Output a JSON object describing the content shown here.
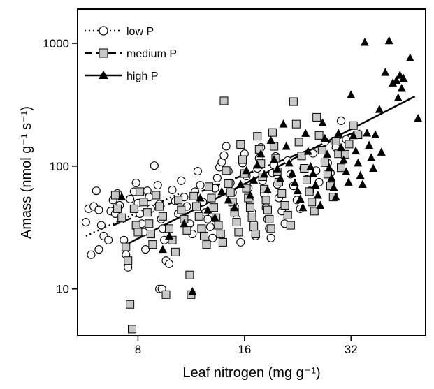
{
  "chart_data": {
    "type": "scatter",
    "title": "",
    "xlabel": "Leaf nitrogen (mg g⁻¹)",
    "ylabel": "Amass (nmol g⁻¹ s⁻¹)",
    "x_scale": "log2",
    "y_scale": "log10",
    "xlim": [
      5.4,
      52
    ],
    "ylim": [
      4.2,
      1900
    ],
    "x_ticks": [
      8,
      16,
      32
    ],
    "x_tick_labels": [
      "8",
      "16",
      "32"
    ],
    "y_ticks": [
      10,
      100,
      1000
    ],
    "y_tick_labels": [
      "10",
      "100",
      "1000"
    ],
    "grid": false,
    "legend": {
      "placement": "top-left",
      "entries": [
        {
          "label": "low P",
          "marker": "circle-open",
          "line": "dotted"
        },
        {
          "label": "medium P",
          "marker": "square-grey",
          "line": "dashed"
        },
        {
          "label": "high P",
          "marker": "triangle-filled",
          "line": "solid"
        }
      ]
    },
    "colors": {
      "axis": "#000000",
      "marker_edge": "#000000",
      "medium_fill": "#c8c8c8",
      "high_fill": "#000000"
    },
    "series": [
      {
        "name": "low P",
        "marker": "circle-open",
        "fit_line": {
          "style": "dotted",
          "x": [
            5.7,
            10.5
          ],
          "y": [
            27,
            60
          ]
        },
        "points": [
          [
            5.7,
            35
          ],
          [
            5.8,
            45
          ],
          [
            6.0,
            47
          ],
          [
            6.1,
            63
          ],
          [
            6.2,
            44
          ],
          [
            6.3,
            33
          ],
          [
            6.4,
            27
          ],
          [
            5.9,
            19
          ],
          [
            6.2,
            21
          ],
          [
            6.6,
            25
          ],
          [
            6.7,
            43
          ],
          [
            6.8,
            53
          ],
          [
            6.9,
            41
          ],
          [
            7.0,
            60
          ],
          [
            7.1,
            48
          ],
          [
            7.2,
            37
          ],
          [
            7.3,
            25
          ],
          [
            7.4,
            19
          ],
          [
            7.5,
            15
          ],
          [
            7.6,
            54
          ],
          [
            7.8,
            62
          ],
          [
            7.9,
            73
          ],
          [
            8.0,
            50
          ],
          [
            8.1,
            41
          ],
          [
            8.2,
            34
          ],
          [
            8.3,
            29
          ],
          [
            8.4,
            21
          ],
          [
            8.5,
            63
          ],
          [
            8.6,
            56
          ],
          [
            8.7,
            45
          ],
          [
            8.9,
            101
          ],
          [
            9.0,
            58
          ],
          [
            9.1,
            70
          ],
          [
            9.2,
            49
          ],
          [
            9.3,
            37
          ],
          [
            9.4,
            31
          ],
          [
            9.5,
            25
          ],
          [
            9.6,
            17
          ],
          [
            9.8,
            16
          ],
          [
            9.2,
            10
          ],
          [
            9.35,
            10
          ],
          [
            10.0,
            64
          ],
          [
            10.2,
            52
          ],
          [
            10.4,
            41
          ],
          [
            10.6,
            76
          ],
          [
            10.8,
            56
          ],
          [
            11.0,
            47
          ],
          [
            11.2,
            34
          ],
          [
            11.4,
            28
          ],
          [
            11.6,
            62
          ],
          [
            11.8,
            91
          ],
          [
            12.0,
            70
          ],
          [
            12.2,
            51
          ],
          [
            12.4,
            42
          ],
          [
            12.6,
            37
          ],
          [
            12.8,
            32
          ],
          [
            13.0,
            26
          ],
          [
            13.2,
            66
          ],
          [
            13.4,
            80
          ],
          [
            13.6,
            98
          ],
          [
            13.8,
            108
          ],
          [
            14.0,
            122
          ],
          [
            14.2,
            145
          ],
          [
            14.4,
            91
          ],
          [
            14.6,
            73
          ],
          [
            14.8,
            61
          ],
          [
            15.0,
            47
          ],
          [
            15.2,
            37
          ],
          [
            15.4,
            29
          ],
          [
            15.6,
            24
          ],
          [
            15.8,
            106
          ],
          [
            16.0,
            126
          ],
          [
            16.2,
            83
          ],
          [
            16.4,
            66
          ],
          [
            16.6,
            51
          ],
          [
            16.8,
            42
          ],
          [
            17.0,
            34
          ],
          [
            17.2,
            27
          ],
          [
            17.4,
            96
          ],
          [
            17.6,
            116
          ],
          [
            17.8,
            142
          ],
          [
            18.0,
            76
          ],
          [
            18.2,
            59
          ],
          [
            18.4,
            46
          ],
          [
            18.6,
            37
          ],
          [
            18.8,
            31
          ],
          [
            19.0,
            26
          ],
          [
            19.2,
            88
          ],
          [
            19.4,
            102
          ],
          [
            19.6,
            120
          ],
          [
            19.8,
            71
          ],
          [
            20.0,
            55
          ],
          [
            20.4,
            43
          ],
          [
            20.8,
            34
          ],
          [
            21.2,
            111
          ],
          [
            21.6,
            86
          ],
          [
            22.0,
            69
          ],
          [
            22.5,
            53
          ],
          [
            23.0,
            45
          ],
          [
            23.5,
            96
          ],
          [
            24.0,
            78
          ],
          [
            24.5,
            63
          ],
          [
            25.0,
            127
          ],
          [
            25.5,
            92
          ],
          [
            26.0,
            74
          ],
          [
            27.0,
            158
          ],
          [
            27.5,
            106
          ],
          [
            28.0,
            88
          ],
          [
            29.0,
            142
          ],
          [
            30.0,
            234
          ],
          [
            31.0,
            165
          ]
        ]
      },
      {
        "name": "medium P",
        "marker": "square-grey",
        "fit_line": {
          "style": "dashed",
          "x": [
            6.8,
            34
          ],
          "y": [
            33,
            196
          ]
        },
        "points": [
          [
            6.9,
            58
          ],
          [
            7.0,
            45
          ],
          [
            7.2,
            38
          ],
          [
            7.4,
            22
          ],
          [
            7.5,
            17
          ],
          [
            7.6,
            7.5
          ],
          [
            7.7,
            4.7
          ],
          [
            7.8,
            45
          ],
          [
            7.9,
            33
          ],
          [
            8.0,
            29
          ],
          [
            8.1,
            62
          ],
          [
            8.3,
            51
          ],
          [
            8.5,
            42
          ],
          [
            8.6,
            34
          ],
          [
            8.7,
            28
          ],
          [
            8.8,
            23
          ],
          [
            9.0,
            58
          ],
          [
            9.2,
            47
          ],
          [
            9.4,
            39
          ],
          [
            9.6,
            9
          ],
          [
            9.8,
            31
          ],
          [
            10.0,
            25
          ],
          [
            10.2,
            20
          ],
          [
            10.4,
            53
          ],
          [
            10.6,
            44
          ],
          [
            10.8,
            37
          ],
          [
            11.0,
            30
          ],
          [
            11.2,
            13
          ],
          [
            11.3,
            9
          ],
          [
            11.5,
            57
          ],
          [
            11.7,
            47
          ],
          [
            11.9,
            39
          ],
          [
            12.1,
            31
          ],
          [
            12.3,
            27
          ],
          [
            12.5,
            23
          ],
          [
            12.7,
            68
          ],
          [
            12.9,
            55
          ],
          [
            13.1,
            46
          ],
          [
            13.3,
            38
          ],
          [
            13.5,
            33
          ],
          [
            13.7,
            28
          ],
          [
            13.9,
            24
          ],
          [
            14.0,
            340
          ],
          [
            14.2,
            92
          ],
          [
            14.4,
            72
          ],
          [
            14.6,
            61
          ],
          [
            14.8,
            51
          ],
          [
            15.0,
            42
          ],
          [
            15.2,
            35
          ],
          [
            15.4,
            29
          ],
          [
            15.6,
            150
          ],
          [
            15.8,
            113
          ],
          [
            16.0,
            87
          ],
          [
            16.2,
            66
          ],
          [
            16.4,
            55
          ],
          [
            16.6,
            46
          ],
          [
            16.8,
            38
          ],
          [
            17.0,
            32
          ],
          [
            17.2,
            28
          ],
          [
            17.4,
            175
          ],
          [
            17.6,
            137
          ],
          [
            17.8,
            105
          ],
          [
            18.0,
            82
          ],
          [
            18.2,
            65
          ],
          [
            18.4,
            53
          ],
          [
            18.6,
            44
          ],
          [
            18.8,
            37
          ],
          [
            19.0,
            31
          ],
          [
            19.2,
            188
          ],
          [
            19.4,
            145
          ],
          [
            19.6,
            116
          ],
          [
            19.8,
            90
          ],
          [
            20.0,
            74
          ],
          [
            20.4,
            60
          ],
          [
            20.8,
            48
          ],
          [
            21.2,
            40
          ],
          [
            21.6,
            33
          ],
          [
            22.0,
            335
          ],
          [
            22.4,
            220
          ],
          [
            22.8,
            157
          ],
          [
            23.2,
            121
          ],
          [
            23.6,
            96
          ],
          [
            24.0,
            77
          ],
          [
            24.4,
            62
          ],
          [
            24.8,
            51
          ],
          [
            25.2,
            43
          ],
          [
            25.6,
            250
          ],
          [
            26.0,
            178
          ],
          [
            26.5,
            135
          ],
          [
            27.0,
            107
          ],
          [
            27.5,
            86
          ],
          [
            28.0,
            69
          ],
          [
            28.5,
            56
          ],
          [
            29.0,
            160
          ],
          [
            29.5,
            126
          ],
          [
            30.0,
            97
          ],
          [
            30.8,
            125
          ],
          [
            31.6,
            151
          ],
          [
            32.5,
            214
          ],
          [
            33.5,
            180
          ]
        ]
      },
      {
        "name": "high P",
        "marker": "triangle-filled",
        "fit_line": {
          "style": "solid",
          "x": [
            7.2,
            48.5
          ],
          "y": [
            22,
            370
          ]
        },
        "points": [
          [
            7.2,
            56
          ],
          [
            9.4,
            21
          ],
          [
            9.8,
            27
          ],
          [
            10.8,
            34
          ],
          [
            11.4,
            9.5
          ],
          [
            12.0,
            55
          ],
          [
            12.6,
            44
          ],
          [
            13.2,
            38
          ],
          [
            13.8,
            62
          ],
          [
            14.4,
            53
          ],
          [
            15.0,
            46
          ],
          [
            15.6,
            71
          ],
          [
            16.2,
            92
          ],
          [
            16.6,
            58
          ],
          [
            17.0,
            77
          ],
          [
            17.4,
            102
          ],
          [
            17.8,
            126
          ],
          [
            18.2,
            86
          ],
          [
            18.6,
            64
          ],
          [
            19.0,
            162
          ],
          [
            19.4,
            113
          ],
          [
            19.8,
            95
          ],
          [
            20.2,
            79
          ],
          [
            20.6,
            220
          ],
          [
            21.0,
            145
          ],
          [
            21.4,
            106
          ],
          [
            21.8,
            87
          ],
          [
            22.2,
            73
          ],
          [
            22.6,
            63
          ],
          [
            23.0,
            54
          ],
          [
            23.4,
            46
          ],
          [
            23.8,
            185
          ],
          [
            24.2,
            132
          ],
          [
            24.6,
            99
          ],
          [
            25.0,
            87
          ],
          [
            25.4,
            70
          ],
          [
            25.8,
            58
          ],
          [
            26.2,
            48
          ],
          [
            26.6,
            225
          ],
          [
            27.0,
            168
          ],
          [
            27.4,
            125
          ],
          [
            27.8,
            97
          ],
          [
            28.2,
            80
          ],
          [
            28.6,
            67
          ],
          [
            29.0,
            56
          ],
          [
            29.5,
            185
          ],
          [
            30.0,
            142
          ],
          [
            30.5,
            112
          ],
          [
            31.0,
            90
          ],
          [
            31.5,
            74
          ],
          [
            32.0,
            380
          ],
          [
            32.5,
            177
          ],
          [
            33.0,
            133
          ],
          [
            33.5,
            106
          ],
          [
            34.0,
            84
          ],
          [
            34.5,
            71
          ],
          [
            35.0,
            1020
          ],
          [
            35.5,
            186
          ],
          [
            36.0,
            148
          ],
          [
            36.5,
            117
          ],
          [
            37.0,
            96
          ],
          [
            37.5,
            180
          ],
          [
            38.5,
            290
          ],
          [
            39.0,
            130
          ],
          [
            40.0,
            580
          ],
          [
            41.0,
            1050
          ],
          [
            42.0,
            475
          ],
          [
            43.0,
            500
          ],
          [
            43.5,
            360
          ],
          [
            44.0,
            550
          ],
          [
            44.5,
            430
          ],
          [
            45.0,
            520
          ],
          [
            47.0,
            760
          ],
          [
            49.5,
            245
          ]
        ]
      }
    ]
  }
}
